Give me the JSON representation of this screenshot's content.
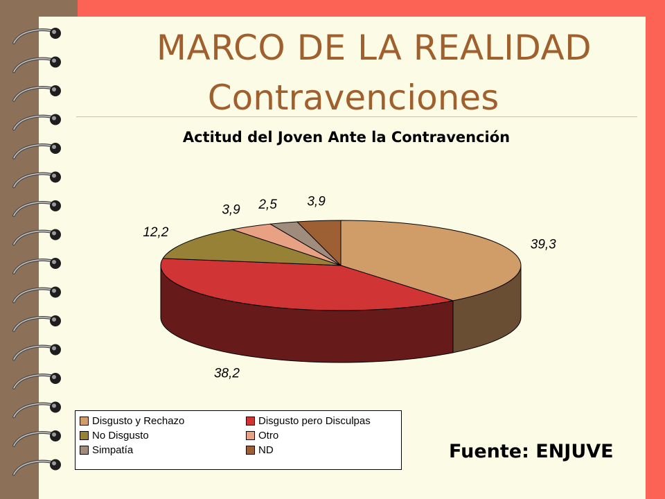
{
  "slide": {
    "title_line1": "MARCO DE LA REALIDAD",
    "title_line2": "Contravenciones",
    "source_text": "Fuente: ENJUVE"
  },
  "colors": {
    "background": "#fc6355",
    "page": "#fcfbe6",
    "title_text": "#a0602e"
  },
  "chart_data": {
    "type": "pie",
    "title": "Actitud del Joven Ante la Contravención",
    "categories": [
      "Disgusto y Rechazo",
      "Disgusto pero Disculpas",
      "No Disgusto",
      "Otro",
      "Simpatía",
      "ND"
    ],
    "values": [
      39.3,
      38.2,
      12.2,
      3.9,
      2.5,
      3.9
    ],
    "value_labels": [
      "39,3",
      "38,2",
      "12,2",
      "3,9",
      "2,5",
      "3,9"
    ],
    "colors": [
      "#d09c68",
      "#d13434",
      "#978136",
      "#e9a184",
      "#a08c7c",
      "#9c6034"
    ],
    "side_colors": [
      "#6a4e34",
      "#661a1a",
      "#4b4018",
      "#74503f",
      "#504539",
      "#4e3019"
    ],
    "three_d": true,
    "legend_placement": "bottom-left"
  }
}
